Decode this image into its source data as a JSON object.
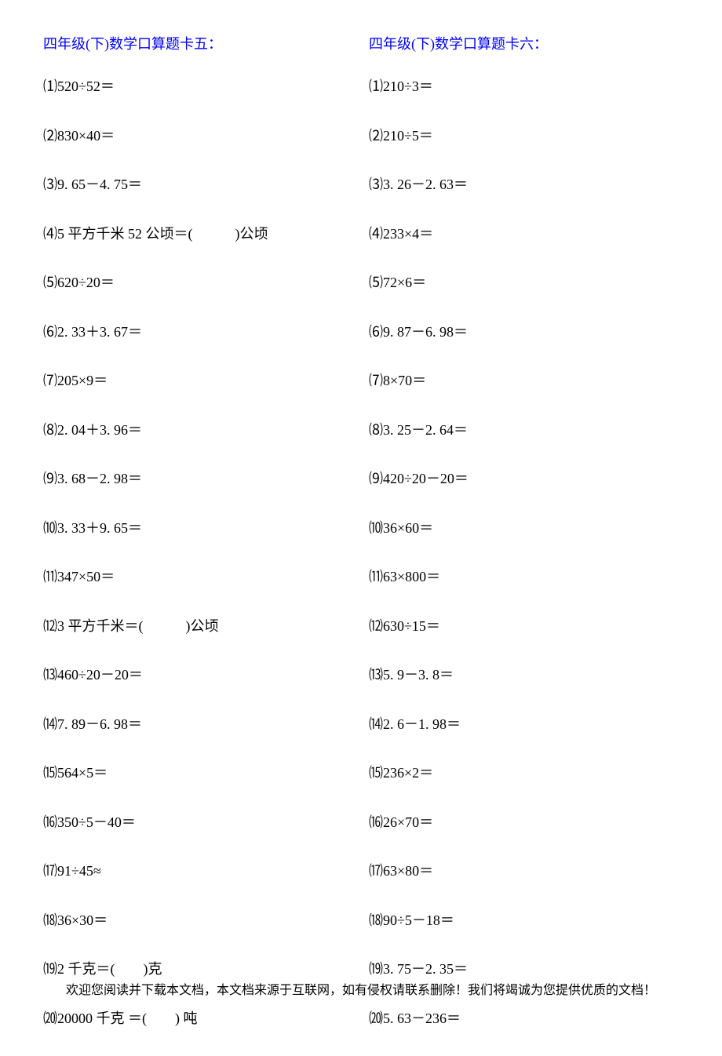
{
  "left": {
    "title": "四年级(下)数学口算题卡五：",
    "items": [
      "⑴520÷52＝",
      "⑵830×40＝",
      "⑶9. 65－4. 75＝",
      "⑷5 平方千米 52 公顷＝(　　　)公顷",
      "⑸620÷20＝",
      "⑹2. 33＋3. 67＝",
      "⑺205×9＝",
      "⑻2. 04＋3. 96＝",
      "⑼3. 68－2. 98＝",
      "⑽3. 33＋9. 65＝",
      "⑾347×50＝",
      "⑿3 平方千米＝(　　　)公顷",
      "⒀460÷20－20＝",
      "⒁7. 89－6. 98＝",
      "⒂564×5＝",
      "⒃350÷5－40＝",
      "⒄91÷45≈",
      "⒅36×30＝",
      "⒆2 千克＝(　　)克",
      "⒇20000 千克 ＝(　　) 吨"
    ]
  },
  "right": {
    "title": "四年级(下)数学口算题卡六：",
    "items": [
      "⑴210÷3＝",
      "⑵210÷5＝",
      "⑶3. 26－2. 63＝",
      "⑷233×4＝",
      "⑸72×6＝",
      "⑹9. 87－6. 98＝",
      "⑺8×70＝",
      "⑻3. 25－2. 64＝",
      "⑼420÷20－20＝",
      "⑽36×60＝",
      "⑾63×800＝",
      "⑿630÷15＝",
      "⒀5. 9－3. 8＝",
      "⒁2. 6－1. 98＝",
      "⒂236×2＝",
      "⒃26×70＝",
      "⒄63×80＝",
      "⒅90÷5－18＝",
      "⒆3. 75－2. 35＝",
      "⒇5. 63－236＝"
    ]
  },
  "footer": "欢迎您阅读并下载本文档，本文档来源于互联网，如有侵权请联系删除！我们将竭诚为您提供优质的文档！"
}
